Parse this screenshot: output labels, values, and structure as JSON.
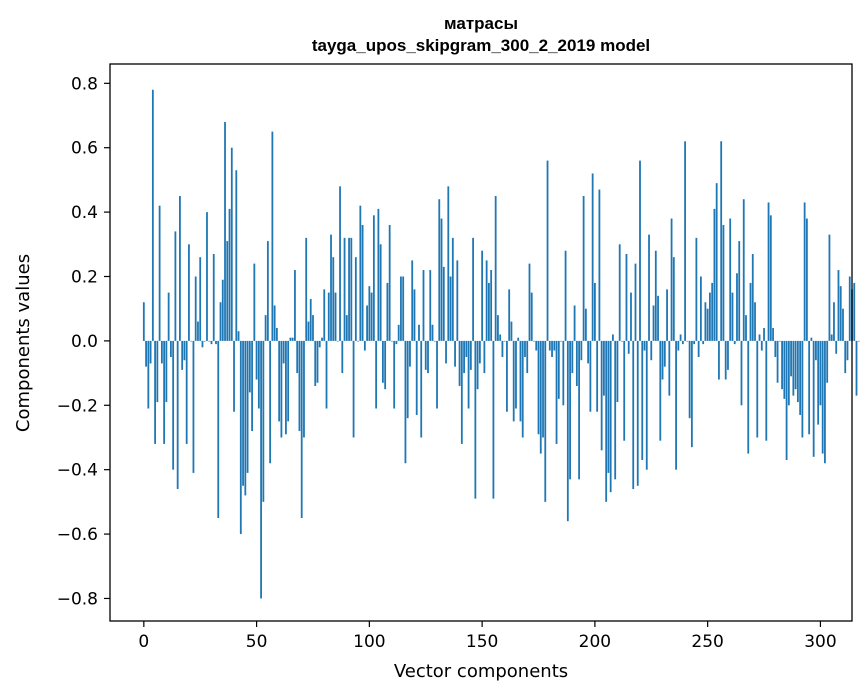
{
  "chart_data": {
    "type": "bar",
    "title": "матрасы",
    "subtitle": "tayga_upos_skipgram_300_2_2019 model",
    "xlabel": "Vector components",
    "ylabel": "Components values",
    "xlim": [
      -15,
      314
    ],
    "ylim": [
      -0.87,
      0.86
    ],
    "xticks": [
      0,
      50,
      100,
      150,
      200,
      250,
      300
    ],
    "xtick_labels": [
      "0",
      "50",
      "100",
      "150",
      "200",
      "250",
      "300"
    ],
    "yticks": [
      0.8,
      0.6,
      0.4,
      0.2,
      0.0,
      -0.2,
      -0.4,
      -0.6,
      -0.8
    ],
    "ytick_labels": [
      "0.8",
      "0.6",
      "0.4",
      "0.2",
      "0.0",
      "−0.2",
      "−0.4",
      "−0.6",
      "−0.8"
    ],
    "grid": false,
    "bar_color": "#1f77b4",
    "values": [
      0.12,
      -0.08,
      -0.21,
      -0.07,
      0.78,
      -0.32,
      -0.19,
      0.42,
      -0.07,
      -0.32,
      -0.19,
      0.15,
      -0.05,
      -0.4,
      0.34,
      -0.46,
      0.45,
      -0.09,
      -0.06,
      -0.32,
      0.3,
      0.0,
      -0.41,
      0.2,
      0.06,
      0.26,
      -0.02,
      0.0,
      0.4,
      0.0,
      -0.01,
      0.27,
      -0.01,
      -0.55,
      0.12,
      0.19,
      0.68,
      0.31,
      0.41,
      0.6,
      -0.22,
      0.53,
      0.03,
      -0.6,
      -0.45,
      -0.48,
      -0.41,
      -0.16,
      -0.28,
      0.24,
      -0.12,
      -0.21,
      -0.8,
      -0.5,
      0.08,
      0.31,
      -0.38,
      0.65,
      0.11,
      0.04,
      -0.25,
      -0.3,
      -0.07,
      -0.29,
      -0.25,
      0.01,
      0.01,
      0.22,
      -0.1,
      -0.28,
      -0.55,
      -0.3,
      0.32,
      0.06,
      0.13,
      0.08,
      -0.14,
      -0.13,
      -0.02,
      0.01,
      0.16,
      -0.21,
      0.15,
      0.33,
      0.26,
      0.15,
      0.0,
      0.48,
      -0.1,
      0.32,
      0.08,
      0.32,
      0.32,
      -0.3,
      0.26,
      0.0,
      0.42,
      0.36,
      -0.03,
      0.11,
      0.17,
      0.15,
      0.39,
      -0.21,
      0.41,
      0.3,
      -0.13,
      -0.15,
      0.18,
      0.36,
      0.0,
      -0.21,
      -0.01,
      0.05,
      0.2,
      0.2,
      -0.38,
      -0.24,
      -0.08,
      0.25,
      0.16,
      -0.23,
      0.05,
      -0.3,
      0.22,
      -0.09,
      -0.1,
      0.22,
      0.05,
      0.0,
      -0.21,
      0.44,
      0.38,
      0.23,
      -0.07,
      0.48,
      0.2,
      0.32,
      -0.08,
      0.25,
      -0.14,
      -0.32,
      -0.1,
      -0.05,
      -0.21,
      -0.09,
      0.32,
      -0.49,
      -0.15,
      -0.07,
      0.28,
      -0.1,
      0.25,
      0.18,
      0.22,
      -0.49,
      0.45,
      0.08,
      0.02,
      -0.05,
      0.0,
      -0.22,
      0.16,
      0.06,
      -0.25,
      -0.21,
      0.01,
      -0.25,
      -0.3,
      -0.05,
      -0.1,
      0.24,
      0.15,
      0.0,
      -0.03,
      -0.29,
      -0.35,
      -0.3,
      -0.5,
      0.56,
      -0.03,
      -0.05,
      -0.03,
      -0.32,
      -0.18,
      0.0,
      -0.2,
      0.28,
      -0.56,
      -0.43,
      -0.1,
      0.11,
      -0.14,
      -0.43,
      -0.06,
      0.45,
      0.1,
      -0.07,
      -0.22,
      0.52,
      0.18,
      -0.22,
      0.47,
      -0.34,
      -0.17,
      -0.5,
      -0.41,
      -0.47,
      0.02,
      -0.43,
      -0.19,
      0.3,
      0.0,
      -0.31,
      0.27,
      -0.04,
      0.15,
      -0.46,
      0.24,
      -0.45,
      0.56,
      -0.37,
      -0.03,
      -0.4,
      0.33,
      -0.06,
      0.11,
      0.28,
      0.14,
      -0.31,
      -0.12,
      -0.08,
      0.16,
      -0.17,
      0.38,
      0.26,
      -0.4,
      -0.03,
      0.02,
      -0.01,
      0.62,
      0.0,
      -0.24,
      -0.33,
      -0.01,
      0.32,
      -0.05,
      0.2,
      -0.01,
      0.12,
      0.1,
      0.15,
      0.18,
      0.41,
      0.49,
      -0.12,
      0.62,
      0.36,
      -0.12,
      -0.09,
      0.38,
      0.15,
      -0.01,
      0.21,
      0.31,
      -0.2,
      0.44,
      0.08,
      -0.35,
      0.18,
      0.27,
      0.12,
      -0.3,
      0.02,
      -0.03,
      0.04,
      -0.31,
      0.43,
      0.39,
      0.04,
      -0.05,
      -0.13,
      0.0,
      -0.15,
      -0.18,
      -0.37,
      -0.2,
      -0.11,
      -0.17,
      -0.15,
      -0.19,
      -0.23,
      -0.3,
      0.43,
      0.38,
      -0.29,
      0.01,
      -0.36,
      -0.06,
      -0.26,
      -0.2,
      -0.35,
      -0.38,
      -0.13,
      0.33,
      0.02,
      0.12,
      -0.04,
      0.22,
      0.17,
      0.1,
      -0.1,
      -0.06,
      0.2,
      0.16,
      0.18,
      -0.17,
      0.0
    ]
  }
}
